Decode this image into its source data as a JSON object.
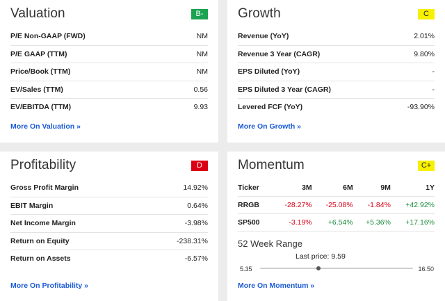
{
  "valuation": {
    "title": "Valuation",
    "grade": "B-",
    "rows": [
      {
        "label": "P/E Non-GAAP (FWD)",
        "value": "NM"
      },
      {
        "label": "P/E GAAP (TTM)",
        "value": "NM"
      },
      {
        "label": "Price/Book (TTM)",
        "value": "NM"
      },
      {
        "label": "EV/Sales (TTM)",
        "value": "0.56"
      },
      {
        "label": "EV/EBITDA (TTM)",
        "value": "9.93"
      }
    ],
    "more_link": "More On Valuation »"
  },
  "growth": {
    "title": "Growth",
    "grade": "C",
    "rows": [
      {
        "label": "Revenue (YoY)",
        "value": "2.01%"
      },
      {
        "label": "Revenue 3 Year (CAGR)",
        "value": "9.80%"
      },
      {
        "label": "EPS Diluted (YoY)",
        "value": "-"
      },
      {
        "label": "EPS Diluted 3 Year (CAGR)",
        "value": "-"
      },
      {
        "label": "Levered FCF (YoY)",
        "value": "-93.90%"
      }
    ],
    "more_link": "More On Growth »"
  },
  "profitability": {
    "title": "Profitability",
    "grade": "D",
    "rows": [
      {
        "label": "Gross Profit Margin",
        "value": "14.92%"
      },
      {
        "label": "EBIT Margin",
        "value": "0.64%"
      },
      {
        "label": "Net Income Margin",
        "value": "-3.98%"
      },
      {
        "label": "Return on Equity",
        "value": "-238.31%"
      },
      {
        "label": "Return on Assets",
        "value": "-6.57%"
      }
    ],
    "more_link": "More On Profitability »"
  },
  "momentum": {
    "title": "Momentum",
    "grade": "C+",
    "headers": [
      "Ticker",
      "3M",
      "6M",
      "9M",
      "1Y"
    ],
    "rows": [
      {
        "ticker": "RRGB",
        "m3": "-28.27%",
        "m6": "-25.08%",
        "m9": "-1.84%",
        "y1": "+42.92%"
      },
      {
        "ticker": "SP500",
        "m3": "-3.19%",
        "m6": "+6.54%",
        "m9": "+5.36%",
        "y1": "+17.16%"
      }
    ],
    "range_title": "52 Week Range",
    "last_price_label": "Last price: 9.59",
    "range_low": "5.35",
    "range_high": "16.50",
    "range_position": 0.38,
    "more_link": "More On Momentum »"
  },
  "colors": {
    "grade_green": "#1aa351",
    "grade_yellow": "#f7f000",
    "grade_red": "#d90016",
    "link_blue": "#1b5bd6",
    "negative": "#d90016",
    "positive": "#1a8c3c"
  }
}
